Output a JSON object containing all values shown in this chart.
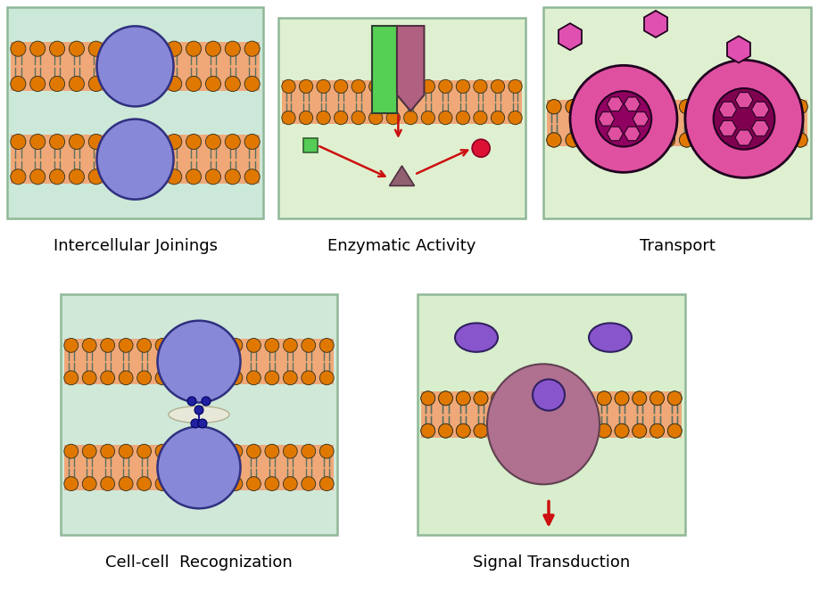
{
  "background_color": "#ffffff",
  "panel1_bg": "#cce8d8",
  "panel2_bg": "#dff0d0",
  "panel3_bg": "#dff0d0",
  "panel4_bg": "#d0e8d8",
  "panel5_bg": "#d8eecc",
  "mem_bg": "#f0a878",
  "lipid_orange": "#e07800",
  "lipid_gray": "#5a7060",
  "protein_purple": "#8888d8",
  "protein_purple_edge": "#303080",
  "protein_green": "#55cc55",
  "protein_pink": "#b06080",
  "protein_magenta": "#e050a0",
  "protein_dark_magenta": "#900060",
  "signal_blob": "#b07090",
  "signal_receptor": "#8855cc",
  "arrow_red": "#cc1010",
  "triangle_color": "#906070",
  "square_green": "#55cc55",
  "circle_red": "#dd1133",
  "connector_blue": "#3030a0",
  "hex_pink": "#e050b0",
  "titles": [
    "Intercellular Joinings",
    "Enzymatic Activity",
    "Transport",
    "Cell-cell  Recognization",
    "Signal Transduction"
  ],
  "title_fontsize": 13,
  "title_fontweight": "normal"
}
